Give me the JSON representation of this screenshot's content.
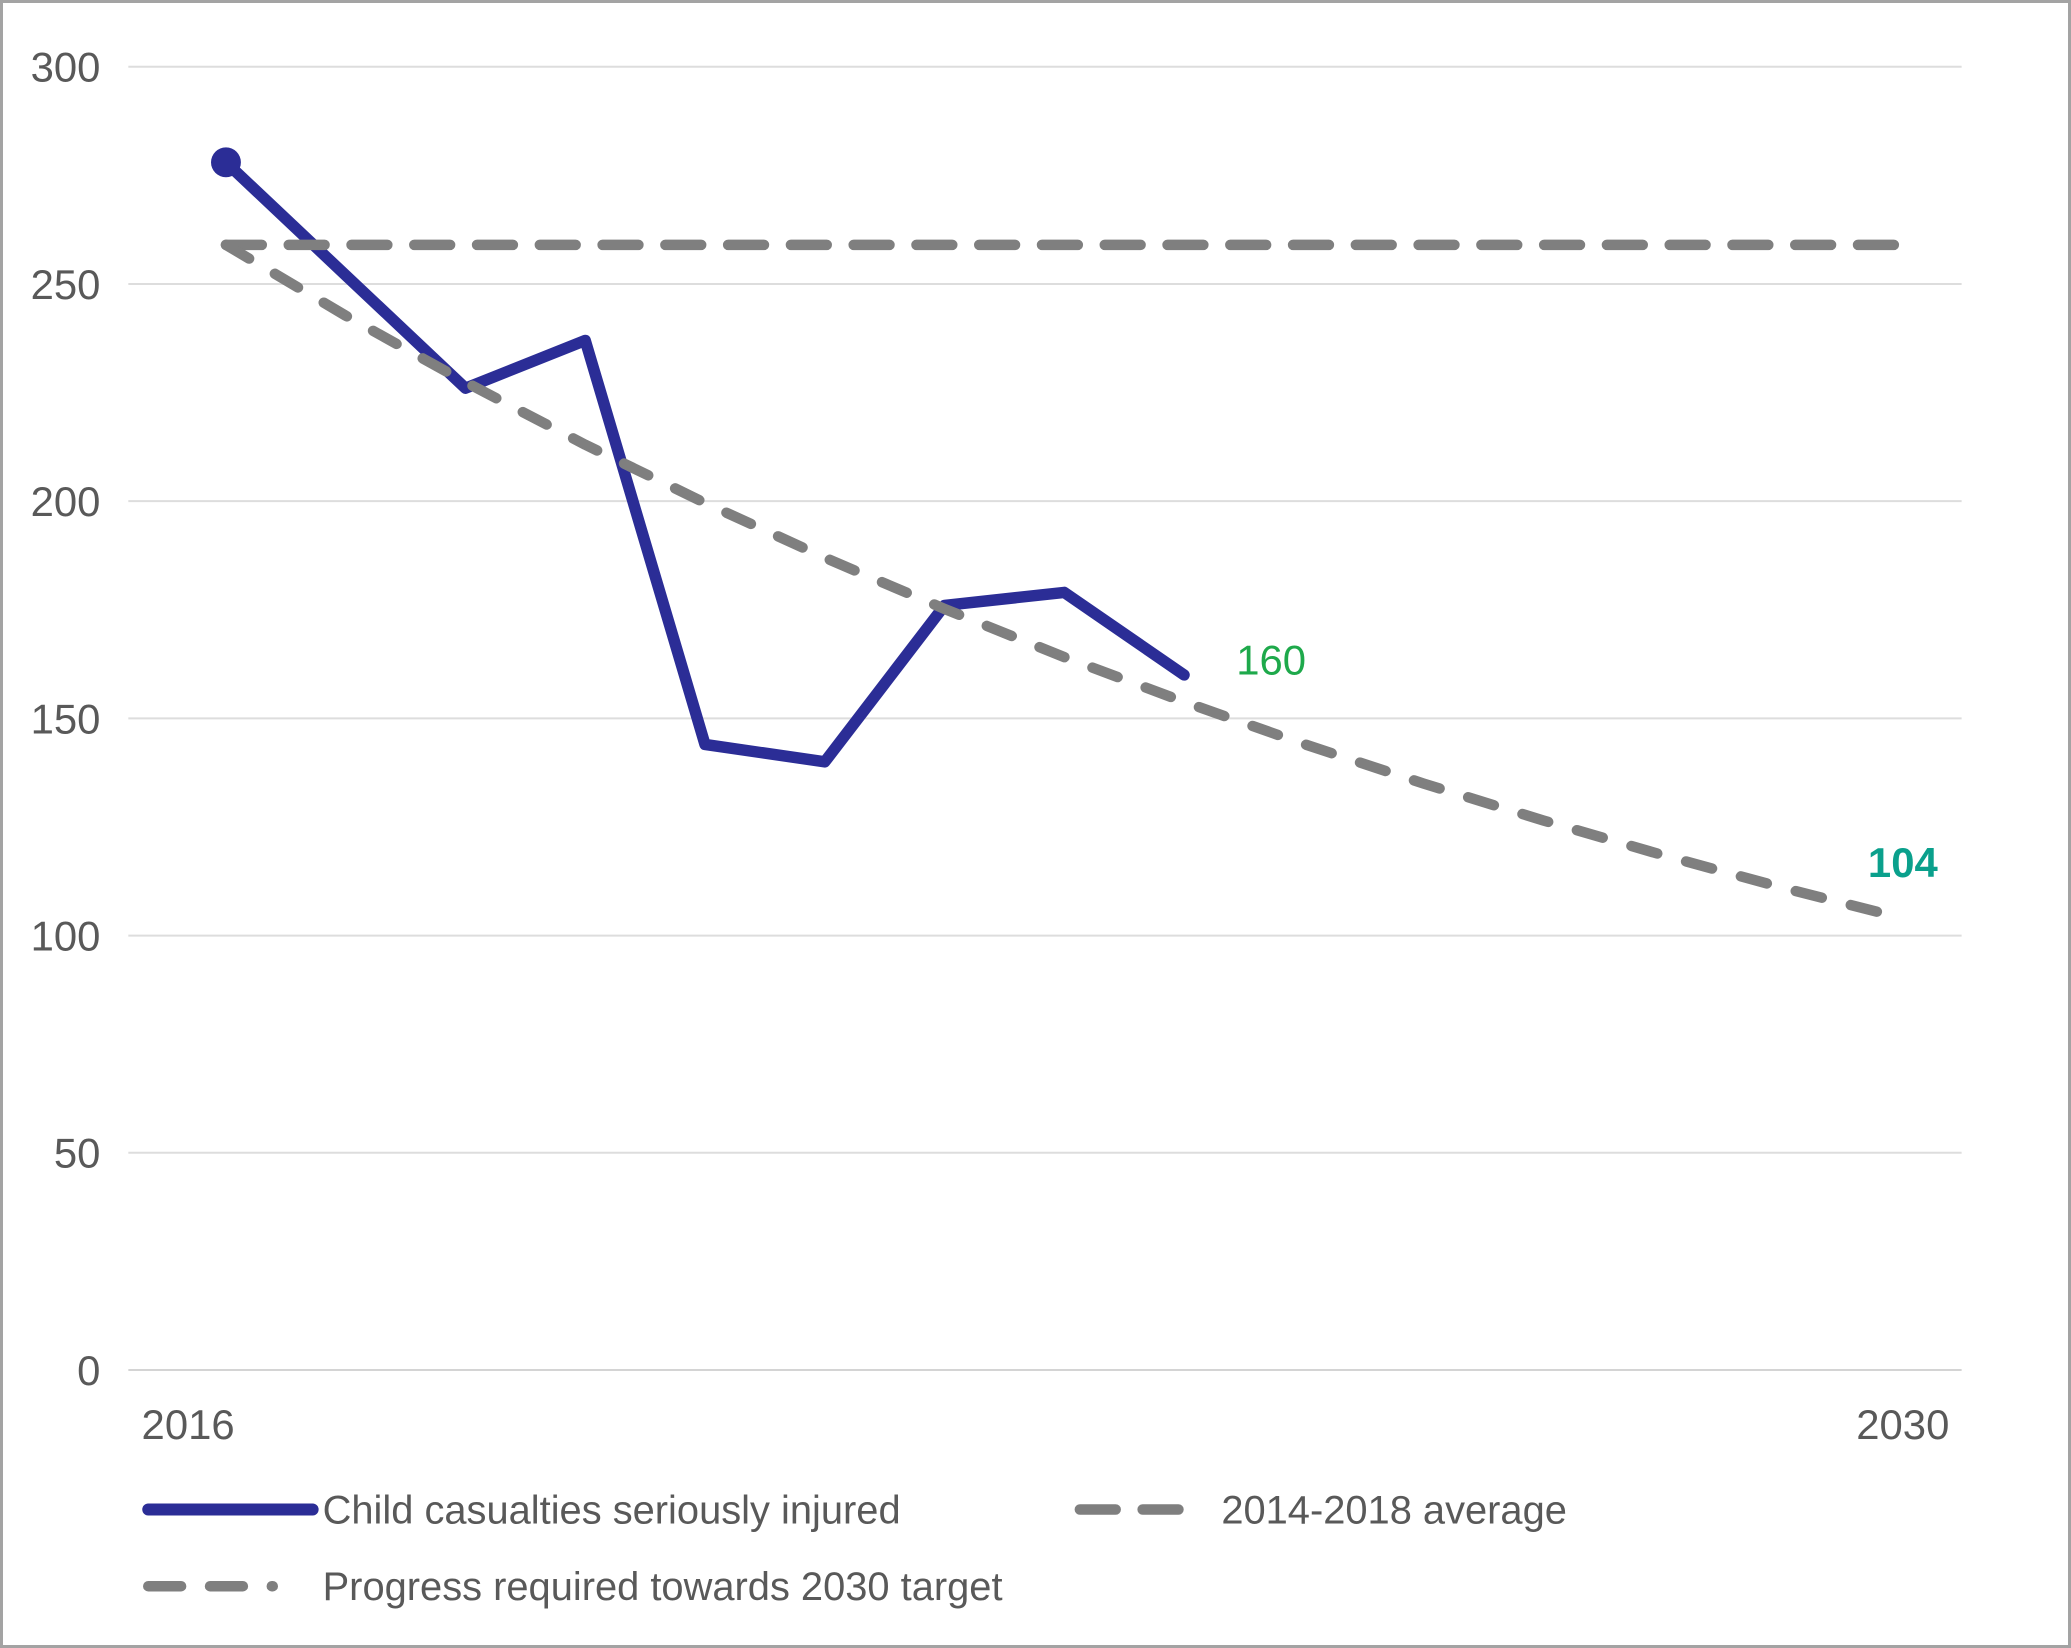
{
  "chart": {
    "background": "#FFFFFF",
    "border_color": "#A3A3A3",
    "text_color": "#595959",
    "gridline_color": "#DDDDDD",
    "axis_line_color": "#D4D4D4"
  },
  "chart_data": {
    "type": "line",
    "title": "",
    "xlabel": "",
    "ylabel": "",
    "ylim": [
      0,
      300
    ],
    "yticks": [
      300,
      250,
      200,
      150,
      100,
      50,
      0
    ],
    "xticks": [
      {
        "label": "2016",
        "year": 2016
      },
      {
        "label": "2030",
        "year": 2030
      }
    ],
    "grid": true,
    "legend_position": "bottom",
    "series": [
      {
        "name": "Child casualties seriously injured",
        "line_style": "solid",
        "color": "#2B2D96",
        "years": [
          2016,
          2017,
          2018,
          2019,
          2020,
          2021,
          2022,
          2023,
          2024
        ],
        "values": [
          278,
          252,
          226,
          237,
          144,
          140,
          176,
          179,
          160
        ],
        "start_marker": true,
        "end_label": "160",
        "end_label_color": "#1EA94B"
      },
      {
        "name": "2014-2018 average",
        "line_style": "dashed",
        "color": "#7F7F7F",
        "years": [
          2016,
          2030
        ],
        "values": [
          259,
          259
        ]
      },
      {
        "name": "Progress required towards 2030 target",
        "line_style": "dashed",
        "color": "#7F7F7F",
        "years": [
          2016,
          2017,
          2018,
          2019,
          2020,
          2021,
          2022,
          2023,
          2024,
          2025,
          2026,
          2027,
          2028,
          2029,
          2030
        ],
        "values": [
          259,
          242.7,
          227.4,
          213.0,
          199.6,
          187.0,
          175.2,
          164.1,
          153.8,
          144.1,
          135.0,
          126.5,
          118.5,
          111.0,
          104
        ],
        "end_label": "104",
        "end_label_color": "#0AA08C"
      }
    ]
  },
  "legend": {
    "items": [
      {
        "label": "Child casualties seriously injured"
      },
      {
        "label": "2014-2018 average"
      },
      {
        "label": "Progress required towards 2030 target"
      }
    ]
  }
}
